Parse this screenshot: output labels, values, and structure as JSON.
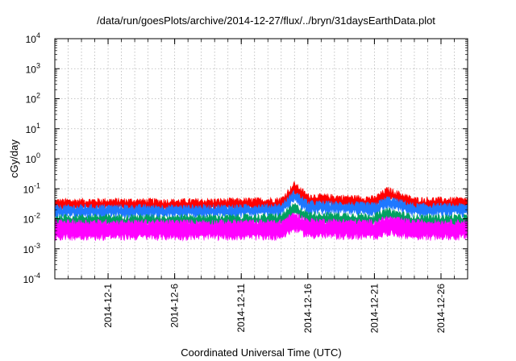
{
  "chart_data": {
    "type": "line",
    "title": "/data/run/goesPlots/archive/2014-12-27/flux/../bryn/31daysEarthData.plot",
    "xlabel": "Coordinated Universal Time (UTC)",
    "ylabel": "cGy/day",
    "yscale": "log",
    "ylim_exponents": [
      -4,
      4
    ],
    "y_ticks": [
      {
        "base": "10",
        "exp": "-4",
        "value": 0.0001
      },
      {
        "base": "10",
        "exp": "-3",
        "value": 0.001
      },
      {
        "base": "10",
        "exp": "-2",
        "value": 0.01
      },
      {
        "base": "10",
        "exp": "-1",
        "value": 0.1
      },
      {
        "base": "10",
        "exp": "0",
        "value": 1
      },
      {
        "base": "10",
        "exp": "1",
        "value": 10
      },
      {
        "base": "10",
        "exp": "2",
        "value": 100
      },
      {
        "base": "10",
        "exp": "3",
        "value": 1000
      },
      {
        "base": "10",
        "exp": "4",
        "value": 10000
      }
    ],
    "xlim": [
      "2014-11-27",
      "2014-12-28"
    ],
    "x_tick_labels": [
      "2014-12-1",
      "2014-12-6",
      "2014-12-11",
      "2014-12-16",
      "2014-12-21",
      "2014-12-26"
    ],
    "x_tick_dates": [
      "2014-12-01",
      "2014-12-06",
      "2014-12-11",
      "2014-12-16",
      "2014-12-21",
      "2014-12-26"
    ],
    "grid": true,
    "series": [
      {
        "color": "#ff0000",
        "x": [
          "2014-11-27",
          "2014-12-01",
          "2014-12-06",
          "2014-12-11",
          "2014-12-14",
          "2014-12-15",
          "2014-12-16",
          "2014-12-21",
          "2014-12-22",
          "2014-12-24",
          "2014-12-28"
        ],
        "y": [
          0.04,
          0.042,
          0.04,
          0.042,
          0.045,
          0.15,
          0.06,
          0.05,
          0.1,
          0.045,
          0.045
        ]
      },
      {
        "color": "#1e78ff",
        "x": [
          "2014-11-27",
          "2014-12-01",
          "2014-12-06",
          "2014-12-11",
          "2014-12-14",
          "2014-12-15",
          "2014-12-16",
          "2014-12-21",
          "2014-12-22",
          "2014-12-24",
          "2014-12-28"
        ],
        "y": [
          0.025,
          0.026,
          0.025,
          0.026,
          0.028,
          0.08,
          0.035,
          0.03,
          0.05,
          0.028,
          0.028
        ]
      },
      {
        "color": "#00a060",
        "x": [
          "2014-11-27",
          "2014-12-01",
          "2014-12-06",
          "2014-12-11",
          "2014-12-14",
          "2014-12-15",
          "2014-12-16",
          "2014-12-21",
          "2014-12-22",
          "2014-12-24",
          "2014-12-28"
        ],
        "y": [
          0.012,
          0.012,
          0.012,
          0.012,
          0.013,
          0.03,
          0.015,
          0.013,
          0.02,
          0.012,
          0.012
        ]
      },
      {
        "color": "#ff00ff",
        "x": [
          "2014-11-27",
          "2014-12-01",
          "2014-12-06",
          "2014-12-11",
          "2014-12-14",
          "2014-12-15",
          "2014-12-16",
          "2014-12-21",
          "2014-12-22",
          "2014-12-24",
          "2014-12-28"
        ],
        "y": [
          0.008,
          0.008,
          0.008,
          0.008,
          0.008,
          0.015,
          0.009,
          0.008,
          0.011,
          0.008,
          0.008
        ]
      }
    ]
  }
}
